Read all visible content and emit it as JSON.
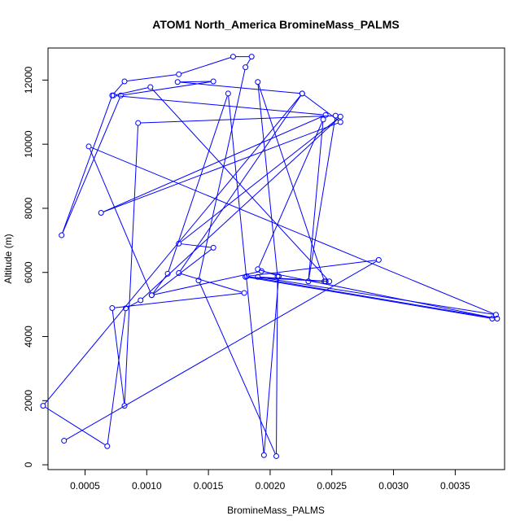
{
  "chart_data": {
    "type": "line",
    "title": "ATOM1 North_America BromineMass_PALMS",
    "xlabel": "BromineMass_PALMS",
    "ylabel": "Altitude (m)",
    "xlim": [
      0.0002,
      0.0039
    ],
    "ylim": [
      -150,
      13000
    ],
    "x_ticks": [
      0.0005,
      0.001,
      0.0015,
      0.002,
      0.0025,
      0.003,
      0.0035
    ],
    "x_tick_labels": [
      "0.0005",
      "0.0010",
      "0.0015",
      "0.0020",
      "0.0025",
      "0.0030",
      "0.0035"
    ],
    "y_ticks": [
      0,
      2000,
      4000,
      6000,
      8000,
      10000,
      12000
    ],
    "y_tick_labels": [
      "0",
      "2000",
      "4000",
      "6000",
      "8000",
      "10000",
      "12000"
    ],
    "grid": false,
    "line_color": "#0000ff",
    "marker": "open-circle",
    "series": [
      {
        "x": [
          0.00033,
          0.00288,
          0.00181,
          0.00384,
          0.00193,
          0.00104,
          0.00154,
          0.00126,
          0.00257,
          0.00095,
          0.00083,
          0.00068,
          0.00016,
          0.00226,
          0.00126,
          0.00179,
          0.00072,
          0.00082,
          0.00093,
          0.00253,
          0.00231,
          0.00243,
          0.0019,
          0.00207,
          0.00195,
          0.00166,
          0.00117,
          0.00104,
          0.00053,
          0.00383,
          0.0019,
          0.00248,
          0.00103,
          0.00073,
          0.00245,
          0.00063,
          0.00257,
          0.00226,
          0.00125,
          0.00154,
          0.00079,
          0.00031,
          0.00072,
          0.00082,
          0.00126,
          0.0017,
          0.00185,
          0.0018,
          0.00142,
          0.00205,
          0.00206,
          0.0019,
          0.00244,
          0.00245,
          0.0018,
          0.0038
        ],
        "y": [
          750,
          6390,
          5880,
          4560,
          6040,
          5290,
          6770,
          6900,
          10860,
          5130,
          4880,
          580,
          1840,
          11580,
          5980,
          5360,
          4890,
          1840,
          10660,
          10890,
          5720,
          10770,
          6100,
          5880,
          300,
          11580,
          5960,
          5290,
          9930,
          4680,
          5860,
          5720,
          11780,
          11520,
          10910,
          7860,
          10690,
          11580,
          11940,
          11960,
          11520,
          7160,
          11520,
          11960,
          12180,
          12730,
          12730,
          12400,
          5750,
          270,
          5880,
          11940,
          5720,
          5720,
          5860,
          4560
        ]
      }
    ]
  }
}
